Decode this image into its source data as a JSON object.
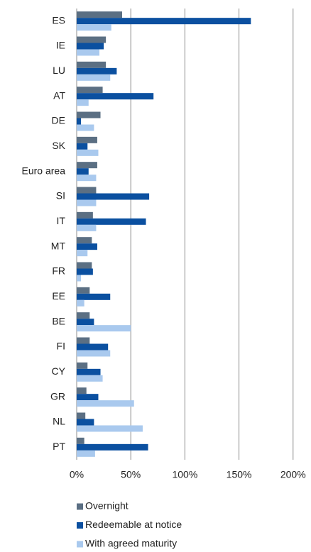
{
  "chart_data": {
    "type": "bar",
    "orientation": "horizontal",
    "categories": [
      "ES",
      "IE",
      "LU",
      "AT",
      "DE",
      "SK",
      "Euro area",
      "SI",
      "IT",
      "MT",
      "FR",
      "EE",
      "BE",
      "FI",
      "CY",
      "GR",
      "NL",
      "PT"
    ],
    "series": [
      {
        "name": "Overnight",
        "color": "#5b6f83",
        "values": [
          42,
          27,
          27,
          24,
          22,
          19,
          19,
          18,
          15,
          14,
          14,
          12,
          12,
          12,
          10,
          9,
          8,
          7
        ]
      },
      {
        "name": "Redeemable at notice",
        "color": "#0b50a0",
        "values": [
          161,
          25,
          37,
          71,
          4,
          10,
          11,
          67,
          64,
          19,
          15,
          31,
          16,
          29,
          22,
          20,
          16,
          66
        ]
      },
      {
        "name": "With agreed maturity",
        "color": "#a9c9ee",
        "values": [
          32,
          21,
          31,
          11,
          16,
          20,
          18,
          18,
          18,
          10,
          4,
          7,
          50,
          31,
          24,
          53,
          61,
          17
        ]
      }
    ],
    "xlim": [
      0,
      210
    ],
    "xticks": [
      {
        "value": 0,
        "label": "0%"
      },
      {
        "value": 50,
        "label": "50%"
      },
      {
        "value": 100,
        "label": "100%"
      },
      {
        "value": 150,
        "label": "150%"
      },
      {
        "value": 200,
        "label": "200%"
      }
    ],
    "grid": true,
    "legend": "bottom"
  }
}
